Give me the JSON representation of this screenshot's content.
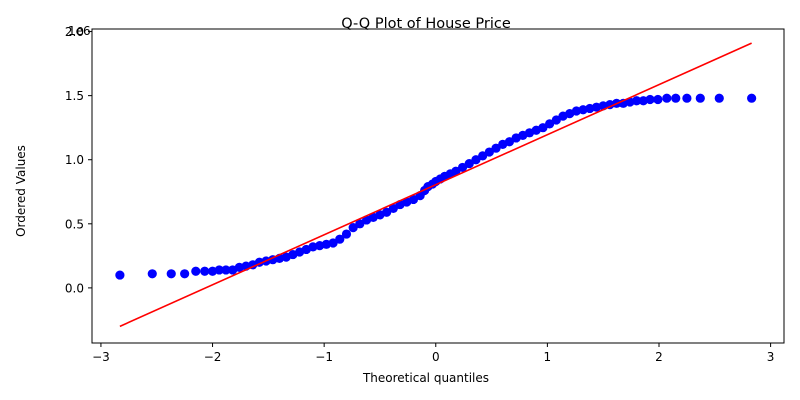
{
  "chart_data": {
    "type": "scatter",
    "title": "Q-Q Plot of House Price",
    "xlabel": "Theoretical quantiles",
    "ylabel": "Ordered Values",
    "y_offset_text": "1e6",
    "xlim": [
      -3.08,
      3.12
    ],
    "ylim": [
      -0.43,
      2.02
    ],
    "x_ticks": [
      -3,
      -2,
      -1,
      0,
      1,
      2,
      3
    ],
    "x_tick_labels": [
      "−3",
      "−2",
      "−1",
      "0",
      "1",
      "2",
      "3"
    ],
    "y_ticks": [
      0.0,
      0.5,
      1.0,
      1.5,
      2.0
    ],
    "y_tick_labels": [
      "0.0",
      "0.5",
      "1.0",
      "1.5",
      "2.0"
    ],
    "grid": false,
    "series": [
      {
        "marker_color": "#0000ff",
        "points": [
          [
            -2.83,
            0.1
          ],
          [
            -2.54,
            0.11
          ],
          [
            -2.37,
            0.11
          ],
          [
            -2.25,
            0.11
          ],
          [
            -2.15,
            0.13
          ],
          [
            -2.07,
            0.13
          ],
          [
            -2.0,
            0.13
          ],
          [
            -1.94,
            0.14
          ],
          [
            -1.88,
            0.14
          ],
          [
            -1.82,
            0.14
          ],
          [
            -1.76,
            0.16
          ],
          [
            -1.7,
            0.17
          ],
          [
            -1.64,
            0.18
          ],
          [
            -1.58,
            0.2
          ],
          [
            -1.52,
            0.21
          ],
          [
            -1.46,
            0.22
          ],
          [
            -1.4,
            0.23
          ],
          [
            -1.34,
            0.24
          ],
          [
            -1.28,
            0.26
          ],
          [
            -1.22,
            0.28
          ],
          [
            -1.16,
            0.3
          ],
          [
            -1.1,
            0.32
          ],
          [
            -1.04,
            0.33
          ],
          [
            -0.98,
            0.34
          ],
          [
            -0.92,
            0.35
          ],
          [
            -0.86,
            0.38
          ],
          [
            -0.8,
            0.42
          ],
          [
            -0.74,
            0.47
          ],
          [
            -0.68,
            0.5
          ],
          [
            -0.62,
            0.53
          ],
          [
            -0.56,
            0.55
          ],
          [
            -0.5,
            0.57
          ],
          [
            -0.44,
            0.59
          ],
          [
            -0.38,
            0.62
          ],
          [
            -0.32,
            0.65
          ],
          [
            -0.26,
            0.67
          ],
          [
            -0.2,
            0.69
          ],
          [
            -0.14,
            0.72
          ],
          [
            -0.1,
            0.76
          ],
          [
            -0.07,
            0.79
          ],
          [
            -0.03,
            0.81
          ],
          [
            0.0,
            0.83
          ],
          [
            0.04,
            0.85
          ],
          [
            0.08,
            0.87
          ],
          [
            0.13,
            0.89
          ],
          [
            0.18,
            0.91
          ],
          [
            0.24,
            0.94
          ],
          [
            0.3,
            0.97
          ],
          [
            0.36,
            1.0
          ],
          [
            0.42,
            1.03
          ],
          [
            0.48,
            1.06
          ],
          [
            0.54,
            1.09
          ],
          [
            0.6,
            1.12
          ],
          [
            0.66,
            1.14
          ],
          [
            0.72,
            1.17
          ],
          [
            0.78,
            1.19
          ],
          [
            0.84,
            1.21
          ],
          [
            0.9,
            1.23
          ],
          [
            0.96,
            1.25
          ],
          [
            1.02,
            1.28
          ],
          [
            1.08,
            1.31
          ],
          [
            1.14,
            1.34
          ],
          [
            1.2,
            1.36
          ],
          [
            1.26,
            1.38
          ],
          [
            1.32,
            1.39
          ],
          [
            1.38,
            1.4
          ],
          [
            1.44,
            1.41
          ],
          [
            1.5,
            1.42
          ],
          [
            1.56,
            1.43
          ],
          [
            1.62,
            1.44
          ],
          [
            1.68,
            1.44
          ],
          [
            1.74,
            1.45
          ],
          [
            1.8,
            1.46
          ],
          [
            1.86,
            1.46
          ],
          [
            1.92,
            1.47
          ],
          [
            1.99,
            1.47
          ],
          [
            2.07,
            1.48
          ],
          [
            2.15,
            1.48
          ],
          [
            2.25,
            1.48
          ],
          [
            2.37,
            1.48
          ],
          [
            2.54,
            1.48
          ],
          [
            2.83,
            1.48
          ]
        ]
      },
      {
        "line_color": "#ff0000",
        "line": [
          [
            -2.83,
            -0.3
          ],
          [
            2.83,
            1.91
          ]
        ]
      }
    ]
  }
}
